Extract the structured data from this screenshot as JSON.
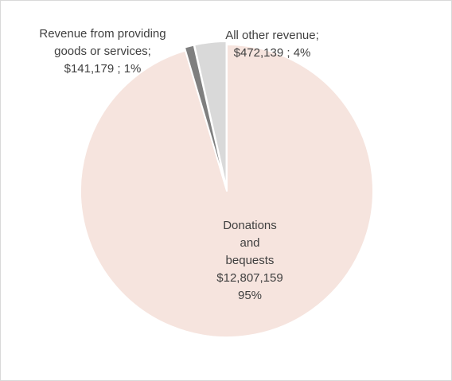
{
  "chart_data": {
    "type": "pie",
    "slices": [
      {
        "name": "Donations and bequests",
        "value": 12807159,
        "value_label": "$12,807,159",
        "percent_label": "95%",
        "color": "#f6e4de"
      },
      {
        "name": "Revenue from providing goods or services",
        "value": 141179,
        "value_label": "$141,179",
        "percent_label": "1%",
        "color": "#7f7f7f"
      },
      {
        "name": "All other revenue",
        "value": 472139,
        "value_label": "$472,139",
        "percent_label": "4%",
        "color": "#d9d9d9"
      }
    ],
    "labels": {
      "donations": {
        "l1": "Donations",
        "l2": "and",
        "l3": "bequests",
        "l4": "$12,807,159",
        "l5": "95%"
      },
      "goods": {
        "l1": "Revenue from providing",
        "l2": "goods or services;",
        "l3": "$141,179 ; 1%"
      },
      "other": {
        "l1": "All other revenue;",
        "l2": "$472,139 ; 4%"
      }
    },
    "legend": "none",
    "start_angle": "12 o'clock",
    "direction": "clockwise"
  }
}
